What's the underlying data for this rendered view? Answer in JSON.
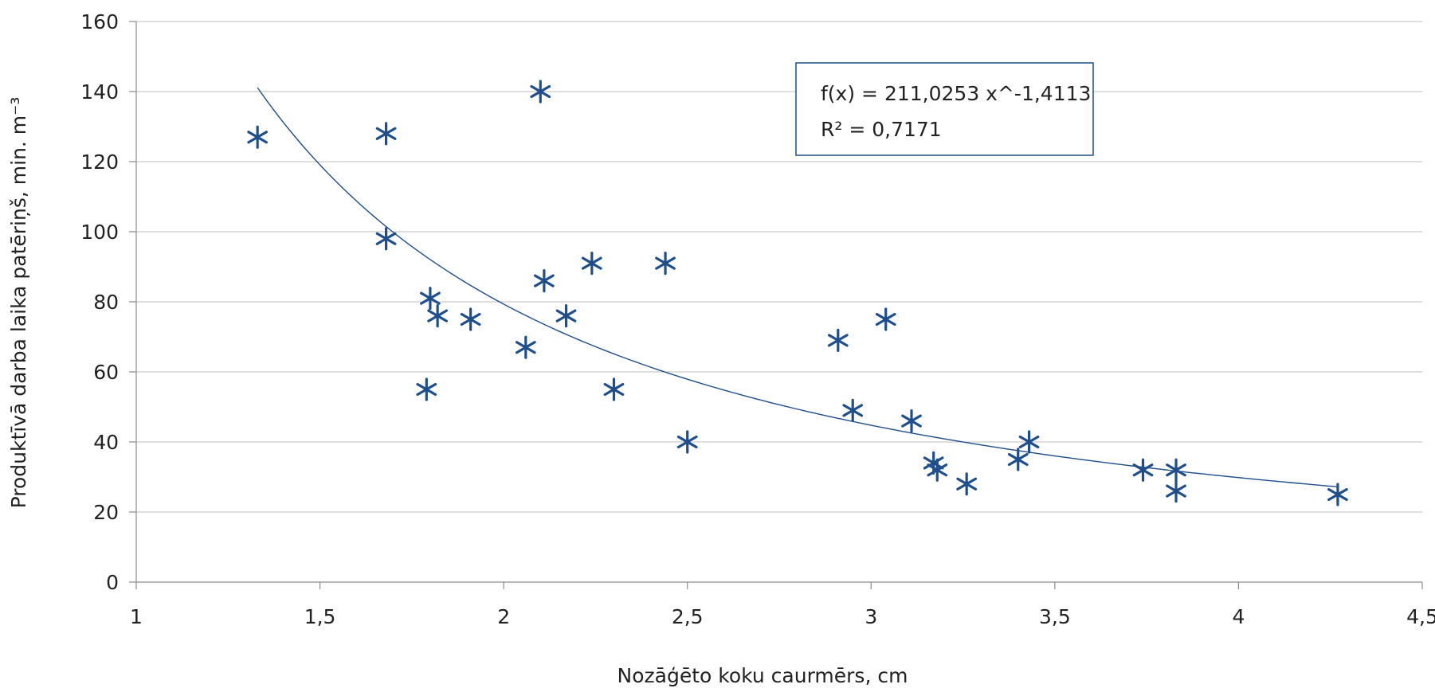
{
  "chart_data": {
    "type": "scatter",
    "xlabel": "Nozāģēto koku caurmērs, cm",
    "ylabel": "Produktīvā darba laika patēriņš, min. m⁻³",
    "xlim": [
      1,
      4.5
    ],
    "ylim": [
      0,
      160
    ],
    "x_ticks": [
      1,
      1.5,
      2,
      2.5,
      3,
      3.5,
      4,
      4.5
    ],
    "x_tick_labels": [
      "1",
      "1,5",
      "2",
      "2,5",
      "3",
      "3,5",
      "4",
      "4,5"
    ],
    "y_ticks": [
      0,
      20,
      40,
      60,
      80,
      100,
      120,
      140,
      160
    ],
    "y_tick_labels": [
      "0",
      "20",
      "40",
      "60",
      "80",
      "100",
      "120",
      "140",
      "160"
    ],
    "grid": "horizontal",
    "marker": "asterisk",
    "color": "#1f4e8c",
    "points": [
      {
        "x": 1.33,
        "y": 127
      },
      {
        "x": 1.68,
        "y": 128
      },
      {
        "x": 1.68,
        "y": 98
      },
      {
        "x": 1.8,
        "y": 81
      },
      {
        "x": 1.82,
        "y": 76
      },
      {
        "x": 1.91,
        "y": 75
      },
      {
        "x": 1.79,
        "y": 55
      },
      {
        "x": 2.06,
        "y": 67
      },
      {
        "x": 2.1,
        "y": 140
      },
      {
        "x": 2.11,
        "y": 86
      },
      {
        "x": 2.17,
        "y": 76
      },
      {
        "x": 2.24,
        "y": 91
      },
      {
        "x": 2.3,
        "y": 55
      },
      {
        "x": 2.44,
        "y": 91
      },
      {
        "x": 2.5,
        "y": 40
      },
      {
        "x": 2.91,
        "y": 69
      },
      {
        "x": 2.95,
        "y": 49
      },
      {
        "x": 3.04,
        "y": 75
      },
      {
        "x": 3.11,
        "y": 46
      },
      {
        "x": 3.17,
        "y": 34
      },
      {
        "x": 3.18,
        "y": 32
      },
      {
        "x": 3.26,
        "y": 28
      },
      {
        "x": 3.4,
        "y": 35
      },
      {
        "x": 3.43,
        "y": 40
      },
      {
        "x": 3.74,
        "y": 32
      },
      {
        "x": 3.83,
        "y": 32
      },
      {
        "x": 3.83,
        "y": 26
      },
      {
        "x": 4.27,
        "y": 25
      }
    ],
    "trendline": {
      "type": "power",
      "a": 211.0253,
      "b": -1.4113,
      "x_range": [
        1.33,
        4.27
      ],
      "equation_label": "f(x) = 211,0253 x^-1,4113",
      "r2_label": "R² = 0,7171"
    }
  }
}
